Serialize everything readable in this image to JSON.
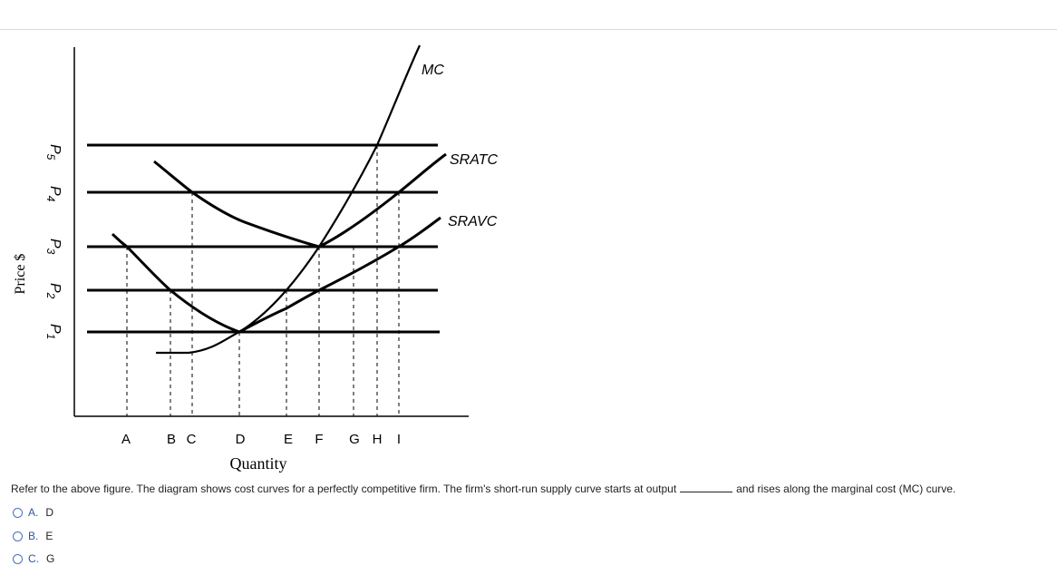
{
  "figure": {
    "ylabel": "Price $",
    "xlabel": "Quantity",
    "price_labels": [
      {
        "letter": "P",
        "sub": "5"
      },
      {
        "letter": "P",
        "sub": "4"
      },
      {
        "letter": "P",
        "sub": "3"
      },
      {
        "letter": "P",
        "sub": "2"
      },
      {
        "letter": "P",
        "sub": "1"
      }
    ],
    "quantity_labels": [
      "A",
      "B",
      "C",
      "D",
      "E",
      "F",
      "G",
      "H",
      "I"
    ],
    "curves": {
      "mc": "MC",
      "sratc": "SRATC",
      "sravc": "SRAVC"
    }
  },
  "question": {
    "text_before": "Refer to the above figure. The diagram shows cost curves for a perfectly competitive firm. The firm's short-run supply curve starts at output",
    "text_after": "and rises along the marginal cost (MC) curve.",
    "options": [
      {
        "letter": "A.",
        "value": "D"
      },
      {
        "letter": "B.",
        "value": "E"
      },
      {
        "letter": "C.",
        "value": "G"
      }
    ]
  }
}
